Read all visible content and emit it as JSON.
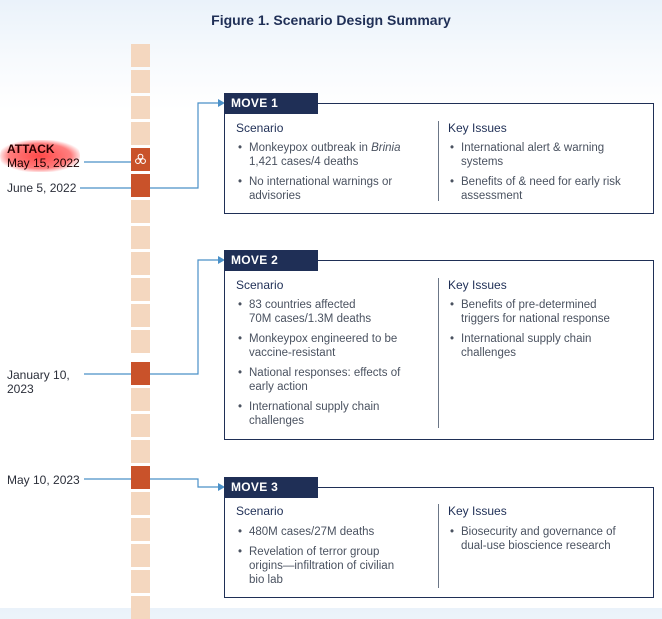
{
  "title": "Figure 1. Scenario Design Summary",
  "attack": {
    "label": "ATTACK",
    "date": "May 15, 2022"
  },
  "dates": {
    "d1": "June 5, 2022",
    "d2_line1": "January 10,",
    "d2_line2": "2023",
    "d3": "May 10, 2023"
  },
  "colors": {
    "navy": "#1f2f56",
    "segment": "#f4d7bf",
    "active_segment": "#c9522a",
    "connector": "#4a90c8"
  },
  "icons": {
    "attack_marker": "biohazard-icon"
  },
  "moves": [
    {
      "label": "MOVE 1",
      "scenario_head": "Scenario",
      "issues_head": "Key Issues",
      "scenario": [
        {
          "l1a": "Monkeypox outbreak in ",
          "l1b": "Brinia",
          "l2": "1,421 cases/4 deaths"
        },
        {
          "l1": "No international warnings or",
          "l2": "advisories"
        }
      ],
      "issues": [
        {
          "l1": "International alert & warning",
          "l2": "systems"
        },
        {
          "l1": "Benefits of & need for early risk",
          "l2": "assessment"
        }
      ]
    },
    {
      "label": "MOVE 2",
      "scenario_head": "Scenario",
      "issues_head": "Key Issues",
      "scenario": [
        {
          "l1": "83 countries affected",
          "l2": "70M cases/1.3M deaths"
        },
        {
          "l1": "Monkeypox engineered to be",
          "l2": "vaccine-resistant"
        },
        {
          "l1": "National responses: effects of",
          "l2": "early action"
        },
        {
          "l1": "International supply chain",
          "l2": "challenges"
        }
      ],
      "issues": [
        {
          "l1": "Benefits of pre-determined",
          "l2": "triggers for national response"
        },
        {
          "l1": "International supply chain",
          "l2": "challenges"
        }
      ]
    },
    {
      "label": "MOVE 3",
      "scenario_head": "Scenario",
      "issues_head": "Key Issues",
      "scenario": [
        {
          "l1": "480M cases/27M deaths"
        },
        {
          "l1": "Revelation of terror group",
          "l2": "origins—infiltration of civilian",
          "l3": "bio lab"
        }
      ],
      "issues": [
        {
          "l1": "Biosecurity and governance of",
          "l2": "dual-use bioscience research"
        }
      ]
    }
  ]
}
